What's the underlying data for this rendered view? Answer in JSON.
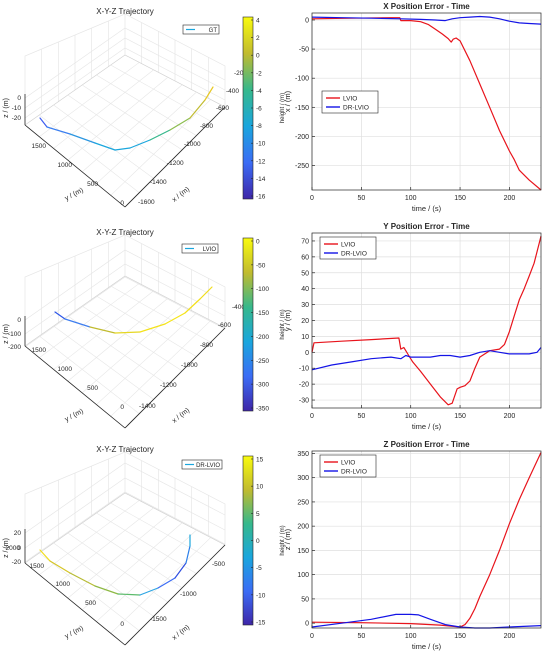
{
  "colors": {
    "lvio": "#e8141c",
    "drlvio": "#1414e6",
    "axis": "#262626",
    "grid": "#dfdfdf",
    "box": "#e6e6e6"
  },
  "chart_data": [
    {
      "type": "line",
      "title": "X Position Error - Time",
      "xlabel": "time / (s)",
      "ylabel": "x / (m)",
      "xlim": [
        0,
        232
      ],
      "ylim": [
        -292,
        12
      ],
      "xticks": [
        0,
        50,
        100,
        150,
        200
      ],
      "yticks": [
        0,
        -50,
        -100,
        -150,
        -200,
        -250
      ],
      "grid": true,
      "legend_position": "middle-left",
      "series": [
        {
          "name": "LVIO",
          "color": "#e8141c",
          "x": [
            0,
            40,
            80,
            89,
            90,
            100,
            110,
            118,
            125,
            132,
            138,
            141,
            143,
            146,
            150,
            160,
            170,
            180,
            190,
            200,
            205,
            210,
            220,
            232
          ],
          "y": [
            2,
            3,
            4,
            4,
            -1,
            -1,
            -3,
            -8,
            -16,
            -24,
            -32,
            -38,
            -33,
            -31,
            -36,
            -70,
            -110,
            -150,
            -190,
            -225,
            -240,
            -258,
            -275,
            -292
          ]
        },
        {
          "name": "DR-LVIO",
          "color": "#1414e6",
          "x": [
            0,
            30,
            60,
            90,
            110,
            125,
            135,
            142,
            150,
            160,
            170,
            180,
            190,
            200,
            210,
            220,
            232
          ],
          "y": [
            5,
            4,
            3,
            2,
            1,
            0,
            -1,
            2,
            4,
            5,
            6,
            5,
            2,
            -2,
            -5,
            -6,
            -7
          ]
        }
      ]
    },
    {
      "type": "line",
      "title": "Y Position Error - Time",
      "xlabel": "time / (s)",
      "ylabel": "y / (m)",
      "xlim": [
        0,
        232
      ],
      "ylim": [
        -35,
        75
      ],
      "xticks": [
        0,
        50,
        100,
        150,
        200
      ],
      "yticks": [
        -30,
        -20,
        -10,
        0,
        10,
        20,
        30,
        40,
        50,
        60,
        70
      ],
      "grid": true,
      "legend_position": "top-left",
      "series": [
        {
          "name": "LVIO",
          "color": "#e8141c",
          "x": [
            0,
            2,
            30,
            60,
            88,
            90,
            93,
            95,
            98,
            102,
            110,
            120,
            130,
            138,
            142,
            147,
            150,
            155,
            160,
            165,
            170,
            180,
            190,
            195,
            200,
            205,
            210,
            215,
            220,
            225,
            232
          ],
          "y": [
            0,
            6,
            7,
            8,
            9,
            2,
            3,
            1,
            -2,
            -6,
            -12,
            -20,
            -28,
            -33,
            -32,
            -23,
            -22,
            -21,
            -18,
            -10,
            -3,
            1,
            2,
            5,
            13,
            23,
            33,
            40,
            48,
            56,
            73
          ]
        },
        {
          "name": "DR-LVIO",
          "color": "#1414e6",
          "x": [
            0,
            20,
            40,
            60,
            80,
            90,
            95,
            100,
            110,
            120,
            130,
            140,
            150,
            160,
            170,
            180,
            190,
            200,
            210,
            220,
            228,
            232
          ],
          "y": [
            -11,
            -8,
            -6,
            -4,
            -3,
            -4,
            -2,
            -3,
            -3,
            -3,
            -2,
            -2,
            -3,
            -2,
            0,
            1,
            0,
            -1,
            -1,
            -1,
            0,
            3
          ]
        }
      ]
    },
    {
      "type": "line",
      "title": "Z Position Error - Time",
      "xlabel": "time / (s)",
      "ylabel": "z / (m)",
      "xlim": [
        0,
        232
      ],
      "ylim": [
        -10,
        355
      ],
      "xticks": [
        0,
        50,
        100,
        150,
        200
      ],
      "yticks": [
        0,
        50,
        100,
        150,
        200,
        250,
        300,
        350
      ],
      "grid": true,
      "legend_position": "top-left",
      "series": [
        {
          "name": "LVIO",
          "color": "#e8141c",
          "x": [
            0,
            50,
            100,
            130,
            150,
            155,
            160,
            165,
            170,
            180,
            190,
            200,
            210,
            220,
            232
          ],
          "y": [
            2,
            1,
            -1,
            -4,
            -8,
            -3,
            10,
            30,
            55,
            100,
            150,
            205,
            255,
            300,
            352
          ]
        },
        {
          "name": "DR-LVIO",
          "color": "#1414e6",
          "x": [
            0,
            30,
            60,
            85,
            100,
            108,
            120,
            135,
            150,
            165,
            180,
            200,
            220,
            232
          ],
          "y": [
            -8,
            0,
            8,
            18,
            18,
            17,
            8,
            -3,
            -8,
            -10,
            -10,
            -8,
            -6,
            -5
          ]
        }
      ]
    },
    {
      "type": "3d-line",
      "title": "X-Y-Z Trajectory",
      "legend": [
        "GT"
      ],
      "xlabel": "x / (m)",
      "ylabel": "y / (m)",
      "zlabel": "z / (m)",
      "xticks": [
        "-1600",
        "-1400",
        "-1200",
        "-1000",
        "-800",
        "-600",
        "-400",
        "-200"
      ],
      "yticks": [
        "0",
        "500",
        "1000",
        "1500"
      ],
      "zticks": [
        "0",
        "-10",
        "-20"
      ],
      "colorbar_label": "height / (m)",
      "colorbar_ticks": [
        "4",
        "2",
        "0",
        "-2",
        "-4",
        "-6",
        "-8",
        "-10",
        "-12",
        "-14",
        "-16"
      ]
    },
    {
      "type": "3d-line",
      "title": "X-Y-Z Trajectory",
      "legend": [
        "LVIO"
      ],
      "xlabel": "x / (m)",
      "ylabel": "y / (m)",
      "zlabel": "z / (m)",
      "xticks": [
        "-1400",
        "-1200",
        "-1000",
        "-800",
        "-600",
        "-400"
      ],
      "yticks": [
        "0",
        "500",
        "1000",
        "1500"
      ],
      "zticks": [
        "0",
        "-100",
        "-200",
        "-300"
      ],
      "colorbar_label": "height / (m)",
      "colorbar_ticks": [
        "0",
        "-50",
        "-100",
        "-150",
        "-200",
        "-250",
        "-300",
        "-350"
      ]
    },
    {
      "type": "3d-line",
      "title": "X-Y-Z Trajectory",
      "legend": [
        "DR-LVIO"
      ],
      "xlabel": "x / (m)",
      "ylabel": "y / (m)",
      "zlabel": "z / (m)",
      "xticks": [
        "-1500",
        "-1000",
        "-500"
      ],
      "yticks": [
        "0",
        "500",
        "1000",
        "1500",
        "2000"
      ],
      "zticks": [
        "20",
        "0",
        "-20"
      ],
      "colorbar_label": "height / (m)",
      "colorbar_ticks": [
        "15",
        "10",
        "5",
        "0",
        "-5",
        "-10",
        "-15"
      ]
    }
  ]
}
